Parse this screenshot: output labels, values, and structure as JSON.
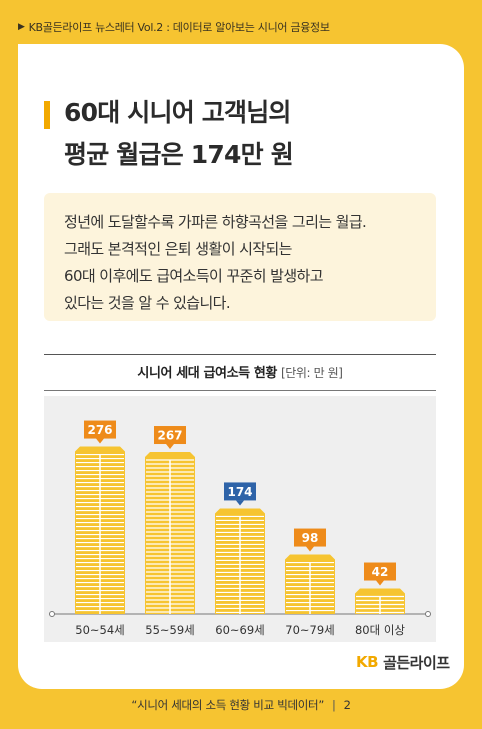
{
  "header": {
    "text": "KB골든라이프 뉴스레터 Vol.2 : 데이터로 알아보는 시니어 금융정보"
  },
  "title": {
    "line1": "60대 시니어 고객님의",
    "line2": "평균 월급은 174만 원"
  },
  "quote": {
    "line1": "정년에 도달할수록 가파른 하향곡선을 그리는 월급.",
    "line2": "그래도 본격적인 은퇴 생활이 시작되는",
    "line3": "60대 이후에도 급여소득이 꾸준히 발생하고",
    "line4": "있다는 것을 알 수 있습니다."
  },
  "chart_data": {
    "type": "bar",
    "title": "시니어 세대 급여소득 현황",
    "unit": "[단위: 만 원]",
    "categories": [
      "50~54세",
      "55~59세",
      "60~69세",
      "70~79세",
      "80대 이상"
    ],
    "values": [
      276,
      267,
      174,
      98,
      42
    ],
    "ylim": [
      0,
      300
    ],
    "colors": {
      "bar": "#F6C431",
      "bar_stripe": "#ffffff",
      "label_default": "#EE8B1A",
      "label_highlight": "#2E63A8",
      "highlight_index": 2
    }
  },
  "logo": {
    "kb": "KB",
    "name": "골든라이프"
  },
  "footer": {
    "text": "“시니어 세대의 소득 현황 비교 빅데이터”",
    "sep": "|",
    "page": "2"
  }
}
